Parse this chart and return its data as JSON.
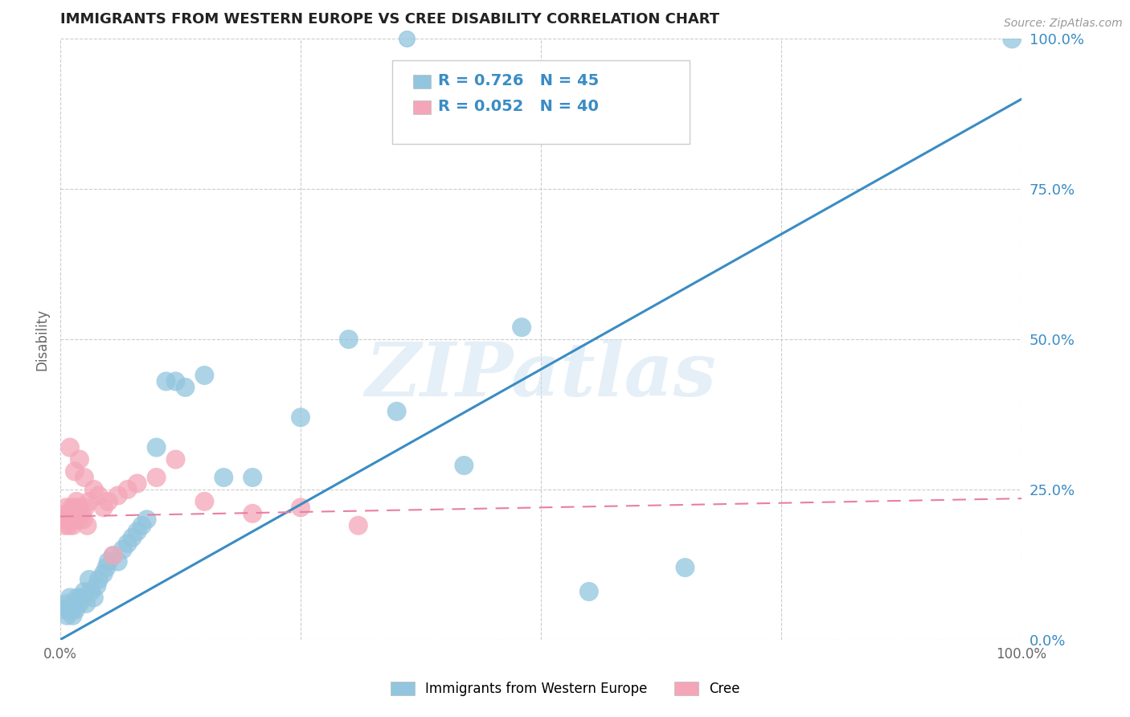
{
  "title": "IMMIGRANTS FROM WESTERN EUROPE VS CREE DISABILITY CORRELATION CHART",
  "source": "Source: ZipAtlas.com",
  "ylabel": "Disability",
  "legend_label1": "Immigrants from Western Europe",
  "legend_label2": "Cree",
  "R1": "0.726",
  "N1": "45",
  "R2": "0.052",
  "N2": "40",
  "color_blue": "#92c5de",
  "color_pink": "#f4a6b8",
  "color_blue_line": "#3a8cc4",
  "color_pink_line": "#e87fa0",
  "color_blue_text": "#3a8cc4",
  "color_pink_text": "#e87fa0",
  "color_grid": "#cccccc",
  "watermark_text": "ZIPatlas",
  "blue_scatter_x": [
    0.005,
    0.007,
    0.008,
    0.009,
    0.01,
    0.012,
    0.013,
    0.015,
    0.016,
    0.018,
    0.02,
    0.022,
    0.025,
    0.027,
    0.03,
    0.032,
    0.035,
    0.038,
    0.04,
    0.045,
    0.048,
    0.05,
    0.055,
    0.06,
    0.065,
    0.07,
    0.075,
    0.08,
    0.085,
    0.09,
    0.1,
    0.11,
    0.12,
    0.13,
    0.15,
    0.17,
    0.2,
    0.25,
    0.3,
    0.35,
    0.42,
    0.48,
    0.55,
    0.65,
    0.99
  ],
  "blue_scatter_y": [
    0.05,
    0.04,
    0.06,
    0.05,
    0.07,
    0.05,
    0.04,
    0.06,
    0.05,
    0.07,
    0.06,
    0.07,
    0.08,
    0.06,
    0.1,
    0.08,
    0.07,
    0.09,
    0.1,
    0.11,
    0.12,
    0.13,
    0.14,
    0.13,
    0.15,
    0.16,
    0.17,
    0.18,
    0.19,
    0.2,
    0.32,
    0.43,
    0.43,
    0.42,
    0.44,
    0.27,
    0.27,
    0.37,
    0.5,
    0.38,
    0.29,
    0.52,
    0.08,
    0.12,
    1.0
  ],
  "pink_scatter_x": [
    0.004,
    0.005,
    0.006,
    0.007,
    0.008,
    0.009,
    0.01,
    0.011,
    0.012,
    0.013,
    0.014,
    0.015,
    0.016,
    0.017,
    0.018,
    0.019,
    0.02,
    0.022,
    0.024,
    0.026,
    0.028,
    0.03,
    0.035,
    0.04,
    0.045,
    0.05,
    0.06,
    0.07,
    0.08,
    0.1,
    0.12,
    0.15,
    0.2,
    0.25,
    0.02,
    0.01,
    0.015,
    0.025,
    0.31,
    0.055
  ],
  "pink_scatter_y": [
    0.2,
    0.19,
    0.22,
    0.21,
    0.2,
    0.19,
    0.21,
    0.2,
    0.22,
    0.19,
    0.21,
    0.22,
    0.2,
    0.23,
    0.21,
    0.2,
    0.22,
    0.21,
    0.2,
    0.22,
    0.19,
    0.23,
    0.25,
    0.24,
    0.22,
    0.23,
    0.24,
    0.25,
    0.26,
    0.27,
    0.3,
    0.23,
    0.21,
    0.22,
    0.3,
    0.32,
    0.28,
    0.27,
    0.19,
    0.14
  ],
  "blue_line_x0": 0.0,
  "blue_line_y0": 0.0,
  "blue_line_x1": 1.0,
  "blue_line_y1": 0.9,
  "pink_line_x0": 0.0,
  "pink_line_y0": 0.205,
  "pink_line_x1": 1.0,
  "pink_line_y1": 0.235,
  "xlim": [
    0,
    1
  ],
  "ylim": [
    0,
    1
  ],
  "yticks": [
    0.0,
    0.25,
    0.5,
    0.75,
    1.0
  ],
  "ytick_labels": [
    "0.0%",
    "25.0%",
    "50.0%",
    "75.0%",
    "100.0%"
  ],
  "xtick_positions": [
    0.0,
    0.25,
    0.5,
    0.75,
    1.0
  ],
  "xtick_labels": [
    "0.0%",
    "",
    "",
    "",
    "100.0%"
  ]
}
